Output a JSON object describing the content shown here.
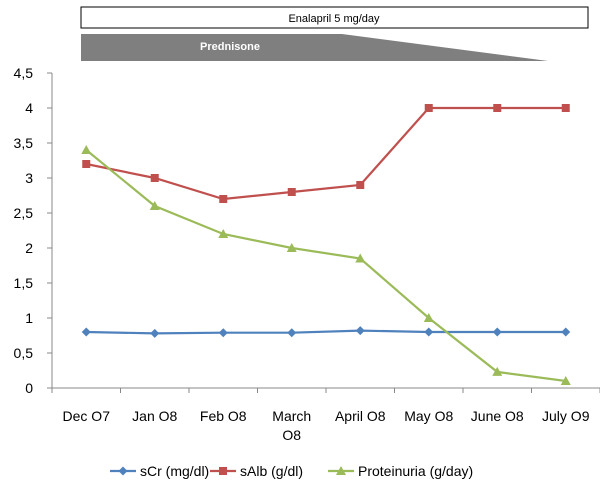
{
  "chart_data": {
    "type": "line",
    "categories": [
      [
        "Dec O7"
      ],
      [
        "Jan O8"
      ],
      [
        "Feb O8"
      ],
      [
        "March",
        "O8"
      ],
      [
        "April O8"
      ],
      [
        "May O8"
      ],
      [
        "June O8"
      ],
      [
        "July O9"
      ]
    ],
    "ylim": [
      0,
      4.5
    ],
    "yticks": [
      "0",
      "0,5",
      "1",
      "1,5",
      "2",
      "2,5",
      "3",
      "3,5",
      "4",
      "4,5"
    ],
    "grid": false,
    "legend_position": "bottom",
    "series": [
      {
        "name": "sCr (mg/dl)",
        "marker": "diamond",
        "color": "#4f81bd",
        "values": [
          0.8,
          0.78,
          0.79,
          0.79,
          0.82,
          0.8,
          0.8,
          0.8
        ]
      },
      {
        "name": "sAlb (g/dl)",
        "marker": "square",
        "color": "#c0504d",
        "values": [
          3.2,
          3.0,
          2.7,
          2.8,
          2.9,
          4.0,
          4.0,
          4.0
        ]
      },
      {
        "name": "Proteinuria (g/day)",
        "marker": "triangle",
        "color": "#9bbb59",
        "values": [
          3.4,
          2.6,
          2.2,
          2.0,
          1.85,
          1.0,
          0.23,
          0.1
        ]
      }
    ],
    "annotations": {
      "enalapril": "Enalapril 5 mg/day",
      "prednisone": "Prednisone"
    }
  }
}
